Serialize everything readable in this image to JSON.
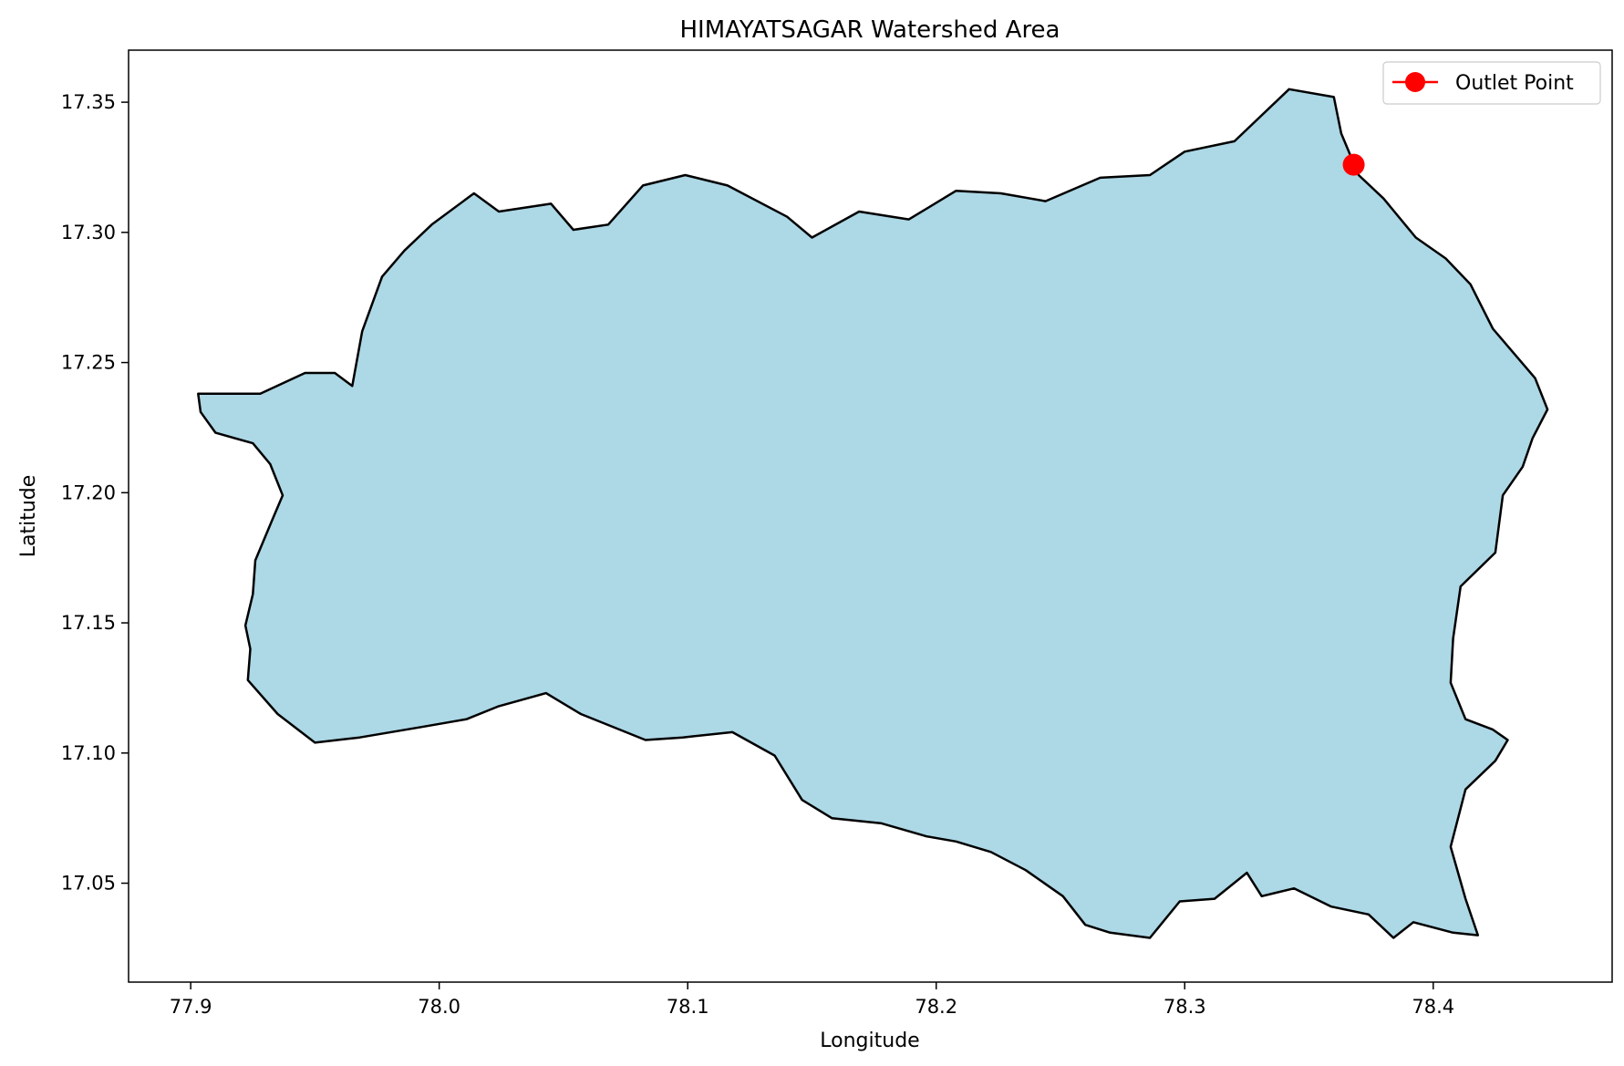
{
  "chart_data": {
    "type": "map",
    "title": "HIMAYATSAGAR Watershed Area",
    "xlabel": "Longitude",
    "ylabel": "Latitude",
    "xlim": [
      77.875,
      78.472
    ],
    "ylim": [
      17.012,
      17.37
    ],
    "xticks": [
      77.9,
      78.0,
      78.1,
      78.2,
      78.3,
      78.4
    ],
    "xtick_labels": [
      "77.9",
      "78.0",
      "78.1",
      "78.2",
      "78.3",
      "78.4"
    ],
    "yticks": [
      17.05,
      17.1,
      17.15,
      17.2,
      17.25,
      17.3,
      17.35
    ],
    "ytick_labels": [
      "17.05",
      "17.10",
      "17.15",
      "17.20",
      "17.25",
      "17.30",
      "17.35"
    ],
    "grid": false,
    "legend": {
      "location": "top-right",
      "entries": [
        "Outlet Point"
      ]
    },
    "watershed": {
      "fill_color": "#add8e6",
      "edge_color": "#000000",
      "boundary": [
        [
          77.903,
          17.238
        ],
        [
          77.928,
          17.238
        ],
        [
          77.946,
          17.246
        ],
        [
          77.958,
          17.246
        ],
        [
          77.965,
          17.241
        ],
        [
          77.969,
          17.262
        ],
        [
          77.977,
          17.283
        ],
        [
          77.986,
          17.293
        ],
        [
          77.997,
          17.303
        ],
        [
          78.014,
          17.315
        ],
        [
          78.024,
          17.308
        ],
        [
          78.045,
          17.311
        ],
        [
          78.054,
          17.301
        ],
        [
          78.068,
          17.303
        ],
        [
          78.082,
          17.318
        ],
        [
          78.099,
          17.322
        ],
        [
          78.116,
          17.318
        ],
        [
          78.14,
          17.306
        ],
        [
          78.15,
          17.298
        ],
        [
          78.169,
          17.308
        ],
        [
          78.189,
          17.305
        ],
        [
          78.208,
          17.316
        ],
        [
          78.226,
          17.315
        ],
        [
          78.244,
          17.312
        ],
        [
          78.266,
          17.321
        ],
        [
          78.286,
          17.322
        ],
        [
          78.3,
          17.331
        ],
        [
          78.32,
          17.335
        ],
        [
          78.342,
          17.355
        ],
        [
          78.36,
          17.352
        ],
        [
          78.363,
          17.338
        ],
        [
          78.37,
          17.322
        ],
        [
          78.38,
          17.313
        ],
        [
          78.393,
          17.298
        ],
        [
          78.405,
          17.29
        ],
        [
          78.415,
          17.28
        ],
        [
          78.424,
          17.263
        ],
        [
          78.441,
          17.244
        ],
        [
          78.446,
          17.232
        ],
        [
          78.44,
          17.221
        ],
        [
          78.436,
          17.21
        ],
        [
          78.428,
          17.199
        ],
        [
          78.425,
          17.177
        ],
        [
          78.411,
          17.164
        ],
        [
          78.408,
          17.144
        ],
        [
          78.407,
          17.127
        ],
        [
          78.413,
          17.113
        ],
        [
          78.424,
          17.109
        ],
        [
          78.43,
          17.105
        ],
        [
          78.425,
          17.097
        ],
        [
          78.413,
          17.086
        ],
        [
          78.407,
          17.064
        ],
        [
          78.413,
          17.044
        ],
        [
          78.418,
          17.03
        ],
        [
          78.408,
          17.031
        ],
        [
          78.392,
          17.035
        ],
        [
          78.384,
          17.029
        ],
        [
          78.374,
          17.038
        ],
        [
          78.359,
          17.041
        ],
        [
          78.344,
          17.048
        ],
        [
          78.331,
          17.045
        ],
        [
          78.325,
          17.054
        ],
        [
          78.312,
          17.044
        ],
        [
          78.298,
          17.043
        ],
        [
          78.286,
          17.029
        ],
        [
          78.27,
          17.031
        ],
        [
          78.26,
          17.034
        ],
        [
          78.251,
          17.045
        ],
        [
          78.236,
          17.055
        ],
        [
          78.222,
          17.062
        ],
        [
          78.208,
          17.066
        ],
        [
          78.196,
          17.068
        ],
        [
          78.178,
          17.073
        ],
        [
          78.158,
          17.075
        ],
        [
          78.146,
          17.082
        ],
        [
          78.135,
          17.099
        ],
        [
          78.118,
          17.108
        ],
        [
          78.098,
          17.106
        ],
        [
          78.083,
          17.105
        ],
        [
          78.057,
          17.115
        ],
        [
          78.043,
          17.123
        ],
        [
          78.024,
          17.118
        ],
        [
          78.011,
          17.113
        ],
        [
          77.993,
          17.11
        ],
        [
          77.968,
          17.106
        ],
        [
          77.95,
          17.104
        ],
        [
          77.935,
          17.115
        ],
        [
          77.923,
          17.128
        ],
        [
          77.924,
          17.14
        ],
        [
          77.922,
          17.149
        ],
        [
          77.925,
          17.161
        ],
        [
          77.926,
          17.174
        ],
        [
          77.933,
          17.19
        ],
        [
          77.937,
          17.199
        ],
        [
          77.932,
          17.211
        ],
        [
          77.925,
          17.219
        ],
        [
          77.91,
          17.223
        ],
        [
          77.904,
          17.231
        ]
      ]
    },
    "outlet_point": {
      "label": "Outlet Point",
      "lon": 78.368,
      "lat": 17.326,
      "color": "#ff0000"
    }
  }
}
